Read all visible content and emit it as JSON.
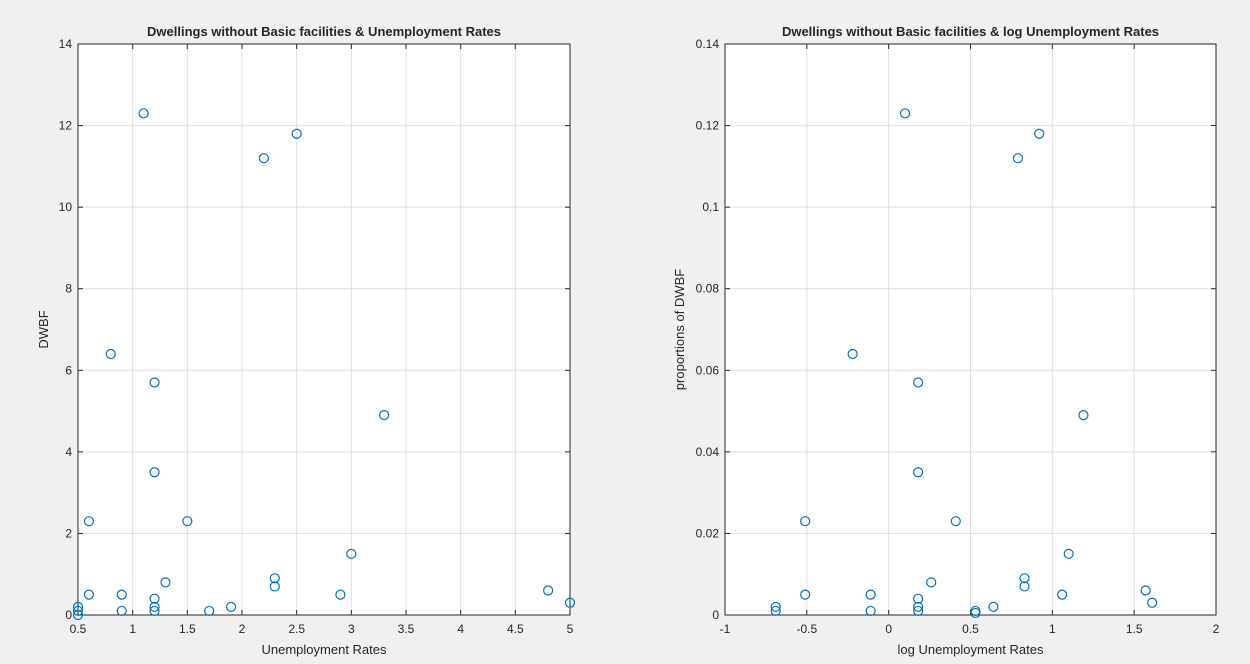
{
  "style": {
    "marker_color": "#0072BD",
    "axes_background": "#ffffff",
    "figure_background": "#f0f0f0"
  },
  "chart_data": [
    {
      "type": "scatter",
      "title": "Dwellings without Basic facilities & Unemployment Rates",
      "xlabel": "Unemployment Rates",
      "ylabel": "DWBF",
      "xlim": [
        0.5,
        5
      ],
      "ylim": [
        0,
        14
      ],
      "xticks": [
        0.5,
        1,
        1.5,
        2,
        2.5,
        3,
        3.5,
        4,
        4.5,
        5
      ],
      "xtick_labels": [
        "0.5",
        "1",
        "1.5",
        "2",
        "2.5",
        "3",
        "3.5",
        "4",
        "4.5",
        "5"
      ],
      "yticks": [
        0,
        2,
        4,
        6,
        8,
        10,
        12,
        14
      ],
      "ytick_labels": [
        "0",
        "2",
        "4",
        "6",
        "8",
        "10",
        "12",
        "14"
      ],
      "grid": true,
      "marker": "circle",
      "points": [
        [
          0.5,
          0.2
        ],
        [
          0.5,
          0.1
        ],
        [
          0.5,
          0.0
        ],
        [
          0.6,
          2.3
        ],
        [
          0.6,
          0.5
        ],
        [
          0.8,
          6.4
        ],
        [
          0.9,
          0.5
        ],
        [
          0.9,
          0.1
        ],
        [
          1.1,
          12.3
        ],
        [
          1.2,
          5.7
        ],
        [
          1.2,
          3.5
        ],
        [
          1.2,
          0.4
        ],
        [
          1.2,
          0.2
        ],
        [
          1.2,
          0.1
        ],
        [
          1.3,
          0.8
        ],
        [
          1.5,
          2.3
        ],
        [
          1.7,
          0.1
        ],
        [
          1.9,
          0.2
        ],
        [
          2.2,
          11.2
        ],
        [
          2.3,
          0.9
        ],
        [
          2.3,
          0.7
        ],
        [
          2.5,
          11.8
        ],
        [
          2.9,
          0.5
        ],
        [
          3.0,
          1.5
        ],
        [
          3.3,
          4.9
        ],
        [
          4.8,
          0.6
        ],
        [
          5.0,
          0.3
        ]
      ]
    },
    {
      "type": "scatter",
      "title": "Dwellings without Basic facilities & log Unemployment Rates",
      "xlabel": "log Unemployment Rates",
      "ylabel": "proportions of DWBF",
      "xlim": [
        -1,
        2
      ],
      "ylim": [
        0,
        0.14
      ],
      "xticks": [
        -1,
        -0.5,
        0,
        0.5,
        1,
        1.5,
        2
      ],
      "xtick_labels": [
        "-1",
        "-0.5",
        "0",
        "0.5",
        "1",
        "1.5",
        "2"
      ],
      "yticks": [
        0,
        0.02,
        0.04,
        0.06,
        0.08,
        0.1,
        0.12,
        0.14
      ],
      "ytick_labels": [
        "0",
        "0.02",
        "0.04",
        "0.06",
        "0.08",
        "0.1",
        "0.12",
        "0.14"
      ],
      "grid": true,
      "marker": "circle",
      "points": [
        [
          -0.69,
          0.002
        ],
        [
          -0.69,
          0.001
        ],
        [
          -0.51,
          0.023
        ],
        [
          -0.51,
          0.005
        ],
        [
          -0.22,
          0.064
        ],
        [
          -0.11,
          0.005
        ],
        [
          -0.11,
          0.001
        ],
        [
          0.1,
          0.123
        ],
        [
          0.18,
          0.057
        ],
        [
          0.18,
          0.035
        ],
        [
          0.18,
          0.004
        ],
        [
          0.18,
          0.002
        ],
        [
          0.18,
          0.001
        ],
        [
          0.26,
          0.008
        ],
        [
          0.41,
          0.023
        ],
        [
          0.53,
          0.001
        ],
        [
          0.53,
          0.0005
        ],
        [
          0.64,
          0.002
        ],
        [
          0.79,
          0.112
        ],
        [
          0.83,
          0.009
        ],
        [
          0.83,
          0.007
        ],
        [
          0.92,
          0.118
        ],
        [
          1.06,
          0.005
        ],
        [
          1.1,
          0.015
        ],
        [
          1.19,
          0.049
        ],
        [
          1.57,
          0.006
        ],
        [
          1.61,
          0.003
        ]
      ]
    }
  ]
}
